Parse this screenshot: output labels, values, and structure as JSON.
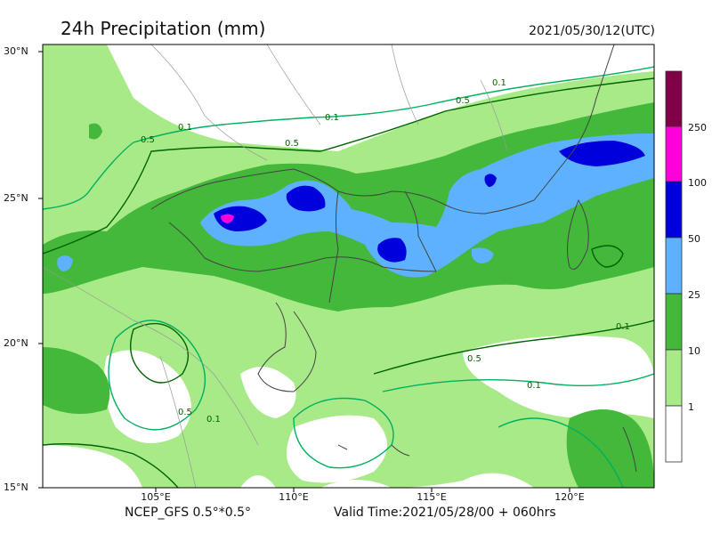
{
  "header": {
    "title": "24h Precipitation (mm)",
    "timestamp": "2021/05/30/12(UTC)"
  },
  "map": {
    "lat_labels": [
      "30°N",
      "25°N",
      "20°N",
      "15°N"
    ],
    "lon_labels": [
      "105°E",
      "110°E",
      "115°E",
      "120°E"
    ],
    "contour_labels": [
      "0.1",
      "0.5"
    ],
    "fill_colors": {
      "level_1": "#a8ea87",
      "level_10": "#43b83a",
      "level_25": "#5db1ff",
      "level_50": "#0000dd",
      "level_100": "#ff00dd",
      "level_250": "#7f0046",
      "contour_01": "#00b060",
      "contour_05": "#006400",
      "boundary": "#444444"
    }
  },
  "legend": {
    "levels": [
      "250",
      "100",
      "50",
      "25",
      "10",
      "1"
    ]
  },
  "footer": {
    "model": "NCEP_GFS 0.5°*0.5°",
    "valid_time": "Valid Time:2021/05/28/00 + 060hrs"
  }
}
